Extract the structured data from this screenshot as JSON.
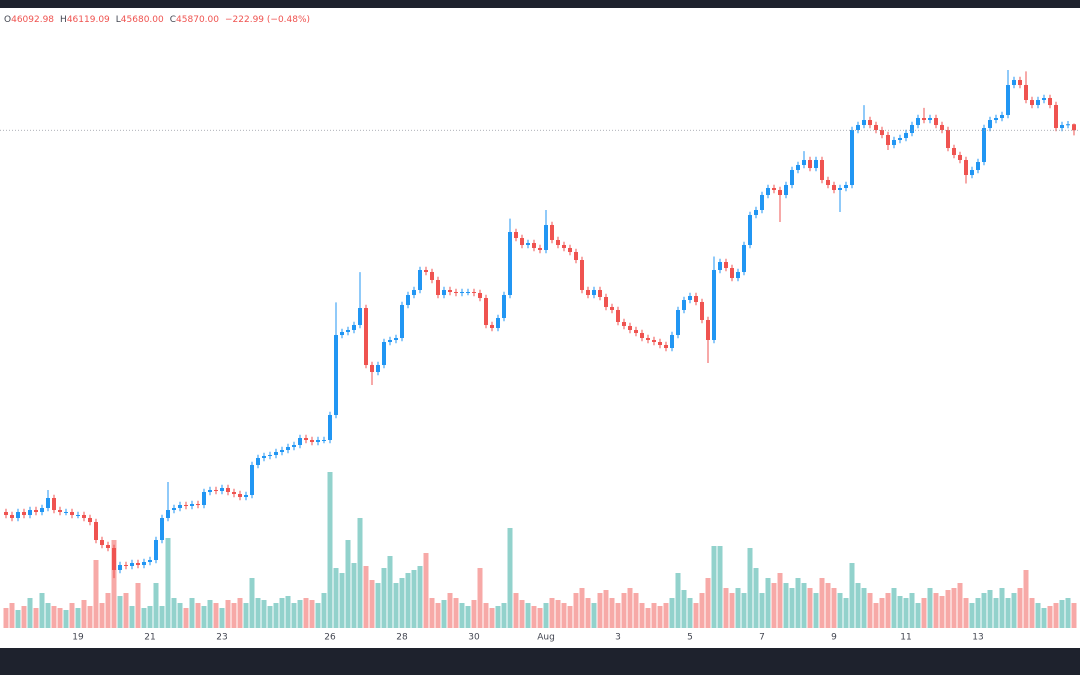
{
  "chart_data": {
    "type": "candlestick",
    "legend": {
      "labels": [
        "O",
        "H",
        "L",
        "C"
      ],
      "values": [
        "46092.98",
        "46119.09",
        "45680.00",
        "45870.00"
      ],
      "change": "−222.99 (−0.48%)"
    },
    "up_color": "#2196f3",
    "down_color": "#ef5350",
    "volume_up_color": "#92d2cc",
    "volume_down_color": "#f7a9a7",
    "ylim": [
      27454,
      50394
    ],
    "volume_lim": [
      0,
      620
    ],
    "xticks": [
      {
        "value": 12,
        "label": "19"
      },
      {
        "value": 24,
        "label": "21"
      },
      {
        "value": 36,
        "label": "23"
      },
      {
        "value": 54,
        "label": "26"
      },
      {
        "value": 66,
        "label": "28"
      },
      {
        "value": 78,
        "label": "30"
      },
      {
        "value": 90,
        "label": "Aug"
      },
      {
        "value": 102,
        "label": "3"
      },
      {
        "value": 114,
        "label": "5"
      },
      {
        "value": 126,
        "label": "7"
      },
      {
        "value": 138,
        "label": "9"
      },
      {
        "value": 150,
        "label": "11"
      },
      {
        "value": 162,
        "label": "13"
      }
    ],
    "open": [
      31746,
      31635,
      31524,
      31746,
      31635,
      31820,
      31746,
      31894,
      32264,
      31820,
      31746,
      31746,
      31635,
      31635,
      31524,
      31376,
      30710,
      30525,
      30414,
      29600,
      29785,
      29748,
      29859,
      29785,
      29896,
      29970,
      30710,
      31524,
      31820,
      31894,
      32005,
      31968,
      32042,
      32005,
      32486,
      32560,
      32523,
      32634,
      32486,
      32412,
      32301,
      32375,
      33485,
      33744,
      33818,
      33855,
      33966,
      34040,
      34151,
      34225,
      34484,
      34410,
      34336,
      34410,
      34410,
      35335,
      38295,
      38406,
      38480,
      38665,
      39294,
      37185,
      36926,
      37185,
      38036,
      38110,
      38184,
      39405,
      39775,
      39960,
      40700,
      40626,
      40330,
      39775,
      39960,
      39886,
      39849,
      39886,
      39886,
      39849,
      39664,
      38665,
      38554,
      38924,
      39775,
      42106,
      41884,
      41625,
      41699,
      41514,
      41440,
      42365,
      41810,
      41625,
      41514,
      41366,
      41070,
      39960,
      39775,
      39960,
      39701,
      39331,
      39220,
      38776,
      38628,
      38480,
      38369,
      38184,
      38110,
      38036,
      37925,
      37814,
      38295,
      39220,
      39590,
      39738,
      39516,
      38850,
      38110,
      40700,
      40996,
      40774,
      40404,
      40626,
      41625,
      42735,
      42920,
      43475,
      43734,
      43660,
      43475,
      43845,
      44400,
      44585,
      44770,
      44474,
      44770,
      44030,
      43845,
      43660,
      43734,
      43845,
      45880,
      46065,
      46250,
      46065,
      45880,
      45695,
      45325,
      45510,
      45584,
      45769,
      46065,
      46324,
      46250,
      46324,
      46065,
      45880,
      45214,
      44955,
      44770,
      44215,
      44400,
      44696,
      45954,
      46250,
      46324,
      46435,
      47545,
      47730,
      47545,
      46990,
      46805,
      46990,
      47064,
      46805,
      45954,
      46065,
      46092.98
    ],
    "high": [
      31866,
      31755,
      31866,
      31866,
      31940,
      31940,
      32014,
      32560,
      32384,
      31940,
      31866,
      31866,
      31755,
      31755,
      31644,
      31496,
      30830,
      30645,
      30534,
      29905,
      29905,
      29979,
      29979,
      30016,
      30090,
      30830,
      31644,
      32856,
      32014,
      32125,
      32125,
      32162,
      32162,
      32606,
      32680,
      32680,
      32754,
      32754,
      32606,
      32532,
      32495,
      33605,
      33864,
      33938,
      33975,
      34086,
      34160,
      34271,
      34345,
      34604,
      34604,
      34530,
      34530,
      34530,
      35455,
      39500,
      38526,
      38600,
      38785,
      40620,
      39414,
      37305,
      37305,
      38156,
      38230,
      38304,
      39525,
      39895,
      40080,
      40820,
      40820,
      40746,
      40450,
      40080,
      40080,
      40006,
      40006,
      40006,
      40006,
      39969,
      39784,
      38785,
      39044,
      39895,
      42600,
      42226,
      42004,
      41819,
      41819,
      41634,
      42920,
      42485,
      41930,
      41745,
      41634,
      41486,
      41190,
      40080,
      40080,
      40080,
      39821,
      39451,
      39340,
      38896,
      38748,
      38600,
      38489,
      38304,
      38230,
      38156,
      38045,
      38415,
      39340,
      39710,
      39858,
      39858,
      39636,
      38970,
      41200,
      41116,
      41116,
      40894,
      40746,
      41745,
      42855,
      43040,
      43595,
      43854,
      43854,
      43780,
      43965,
      44520,
      44705,
      45100,
      44890,
      44890,
      44890,
      44150,
      43965,
      43854,
      43965,
      46000,
      46185,
      46800,
      46370,
      46185,
      46000,
      45815,
      45630,
      45704,
      45889,
      46185,
      46444,
      46700,
      46444,
      46444,
      46185,
      46000,
      45334,
      45075,
      44890,
      44520,
      44816,
      46074,
      46370,
      46444,
      46555,
      48100,
      47850,
      47850,
      48050,
      47110,
      47110,
      47184,
      47184,
      46925,
      46185,
      46213,
      46119.09
    ],
    "low": [
      31515,
      31404,
      31404,
      31515,
      31515,
      31626,
      31626,
      31774,
      31700,
      31626,
      31626,
      31515,
      31515,
      31404,
      31256,
      30590,
      30405,
      30294,
      29300,
      29480,
      29628,
      29628,
      29665,
      29665,
      29776,
      29850,
      30590,
      31404,
      31700,
      31774,
      31848,
      31848,
      31885,
      31885,
      32366,
      32403,
      32403,
      32366,
      32292,
      32181,
      32181,
      32255,
      33365,
      33624,
      33698,
      33735,
      33846,
      33920,
      34031,
      34105,
      34290,
      34216,
      34216,
      34290,
      34290,
      35215,
      38175,
      38286,
      38360,
      38545,
      37065,
      36445,
      36806,
      37065,
      37916,
      37990,
      38064,
      39285,
      39655,
      39840,
      40506,
      40210,
      39655,
      39655,
      39766,
      39729,
      39729,
      39766,
      39729,
      39544,
      38545,
      38434,
      38434,
      38804,
      39655,
      41764,
      41505,
      41505,
      41394,
      41320,
      41320,
      41690,
      41505,
      41394,
      41246,
      40950,
      39840,
      39655,
      39655,
      39581,
      39211,
      39100,
      38656,
      38508,
      38360,
      38249,
      38064,
      37990,
      37916,
      37805,
      37694,
      37694,
      38175,
      39100,
      39470,
      39396,
      38730,
      37260,
      37990,
      40580,
      40654,
      40284,
      40284,
      40506,
      41505,
      42615,
      42800,
      43355,
      43540,
      42476,
      43355,
      43725,
      44280,
      44465,
      44354,
      44354,
      43910,
      43725,
      43540,
      42846,
      43614,
      43725,
      45760,
      45945,
      45945,
      45760,
      45575,
      45140,
      45205,
      45390,
      45464,
      45649,
      45945,
      46130,
      46130,
      45945,
      45760,
      45094,
      44835,
      44650,
      43900,
      44095,
      44280,
      44576,
      45834,
      46130,
      46204,
      46315,
      47425,
      47425,
      46870,
      46685,
      46685,
      46870,
      46685,
      45834,
      45834,
      45945,
      45680
    ],
    "close": [
      31635,
      31524,
      31746,
      31635,
      31820,
      31746,
      31894,
      32264,
      31820,
      31746,
      31746,
      31635,
      31635,
      31524,
      31376,
      30710,
      30525,
      30414,
      29600,
      29785,
      29748,
      29859,
      29785,
      29896,
      29970,
      30710,
      31524,
      31820,
      31894,
      32005,
      31968,
      32042,
      32005,
      32486,
      32560,
      32523,
      32634,
      32486,
      32412,
      32301,
      32375,
      33485,
      33744,
      33818,
      33855,
      33966,
      34040,
      34151,
      34225,
      34484,
      34410,
      34336,
      34410,
      34410,
      35335,
      38295,
      38406,
      38480,
      38665,
      39294,
      37185,
      36926,
      37185,
      38036,
      38110,
      38184,
      39405,
      39775,
      39960,
      40700,
      40626,
      40330,
      39775,
      39960,
      39886,
      39849,
      39886,
      39886,
      39849,
      39664,
      38665,
      38554,
      38924,
      39775,
      42106,
      41884,
      41625,
      41699,
      41514,
      41440,
      42365,
      41810,
      41625,
      41514,
      41366,
      41070,
      39960,
      39775,
      39960,
      39701,
      39331,
      39220,
      38776,
      38628,
      38480,
      38369,
      38184,
      38110,
      38036,
      37925,
      37814,
      38295,
      39220,
      39590,
      39738,
      39516,
      38850,
      38110,
      40700,
      40996,
      40774,
      40404,
      40626,
      41625,
      42735,
      42920,
      43475,
      43734,
      43660,
      43475,
      43845,
      44400,
      44585,
      44770,
      44474,
      44770,
      44030,
      43845,
      43660,
      43734,
      43845,
      45880,
      46065,
      46250,
      46065,
      45880,
      45695,
      45325,
      45510,
      45584,
      45769,
      46065,
      46324,
      46250,
      46324,
      46065,
      45880,
      45214,
      44955,
      44770,
      44215,
      44400,
      44696,
      45954,
      46250,
      46324,
      46435,
      47545,
      47730,
      47545,
      46990,
      46805,
      46990,
      47064,
      46805,
      45954,
      46065,
      46092.98,
      45870
    ],
    "volume": [
      20,
      25,
      18,
      22,
      30,
      20,
      35,
      25,
      22,
      20,
      18,
      25,
      20,
      28,
      22,
      68,
      25,
      35,
      88,
      32,
      35,
      22,
      45,
      20,
      22,
      45,
      22,
      90,
      30,
      25,
      20,
      30,
      25,
      22,
      28,
      25,
      20,
      28,
      25,
      30,
      25,
      50,
      30,
      28,
      22,
      25,
      30,
      32,
      25,
      28,
      30,
      28,
      25,
      35,
      156,
      60,
      55,
      88,
      65,
      110,
      62,
      48,
      45,
      60,
      72,
      45,
      50,
      55,
      58,
      62,
      75,
      30,
      25,
      28,
      35,
      30,
      25,
      22,
      28,
      60,
      25,
      20,
      22,
      25,
      100,
      35,
      28,
      25,
      22,
      20,
      25,
      30,
      28,
      25,
      22,
      35,
      40,
      30,
      25,
      35,
      38,
      30,
      25,
      35,
      40,
      35,
      25,
      20,
      25,
      22,
      25,
      30,
      55,
      38,
      30,
      25,
      35,
      50,
      82,
      82,
      40,
      35,
      40,
      35,
      80,
      60,
      35,
      50,
      45,
      55,
      45,
      40,
      50,
      45,
      40,
      35,
      50,
      45,
      40,
      35,
      30,
      65,
      45,
      40,
      35,
      25,
      30,
      35,
      40,
      32,
      30,
      35,
      25,
      30,
      40,
      35,
      32,
      38,
      40,
      45,
      30,
      25,
      30,
      35,
      38,
      30,
      40,
      30,
      35,
      40,
      58,
      30,
      25,
      20,
      22,
      25,
      28,
      30,
      25
    ]
  }
}
